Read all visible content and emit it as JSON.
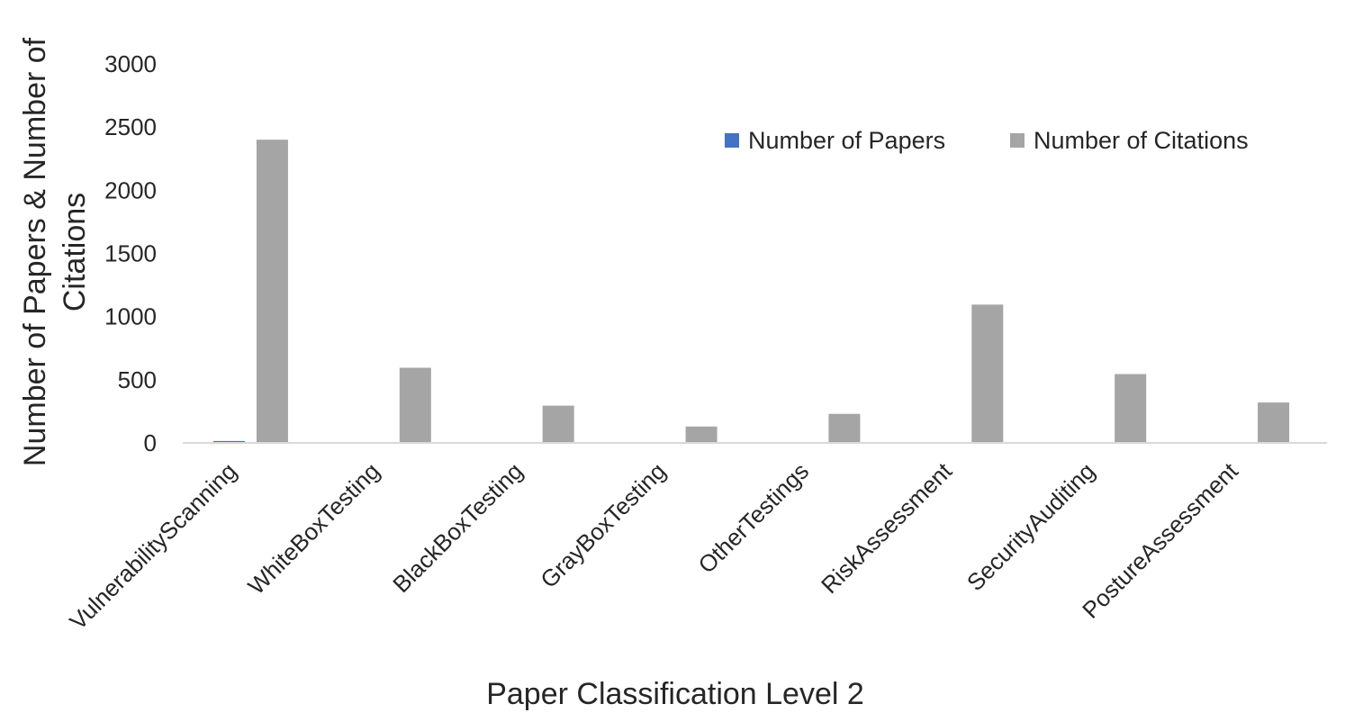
{
  "chart_data": {
    "type": "bar",
    "title": "",
    "xlabel": "Paper Classification Level 2",
    "ylabel_lines": [
      "Number of Papers & Number of",
      "Citations"
    ],
    "ylim": [
      0,
      3000
    ],
    "yticks": [
      0,
      500,
      1000,
      1500,
      2000,
      2500,
      3000
    ],
    "grid": false,
    "legend_position": "top-right",
    "categories": [
      "VulnerabilityScanning",
      "WhiteBoxTesting",
      "BlackBoxTesting",
      "GrayBoxTesting",
      "OtherTestings",
      "RiskAssessment",
      "SecurityAuditing",
      "PostureAssessment"
    ],
    "series": [
      {
        "name": "Number of Papers",
        "color": "#4472C4",
        "values": [
          15,
          3,
          2,
          2,
          4,
          2,
          2,
          3
        ]
      },
      {
        "name": "Number of Citations",
        "color": "#A5A5A5",
        "values": [
          2400,
          595,
          295,
          130,
          230,
          1095,
          545,
          320
        ]
      }
    ]
  }
}
